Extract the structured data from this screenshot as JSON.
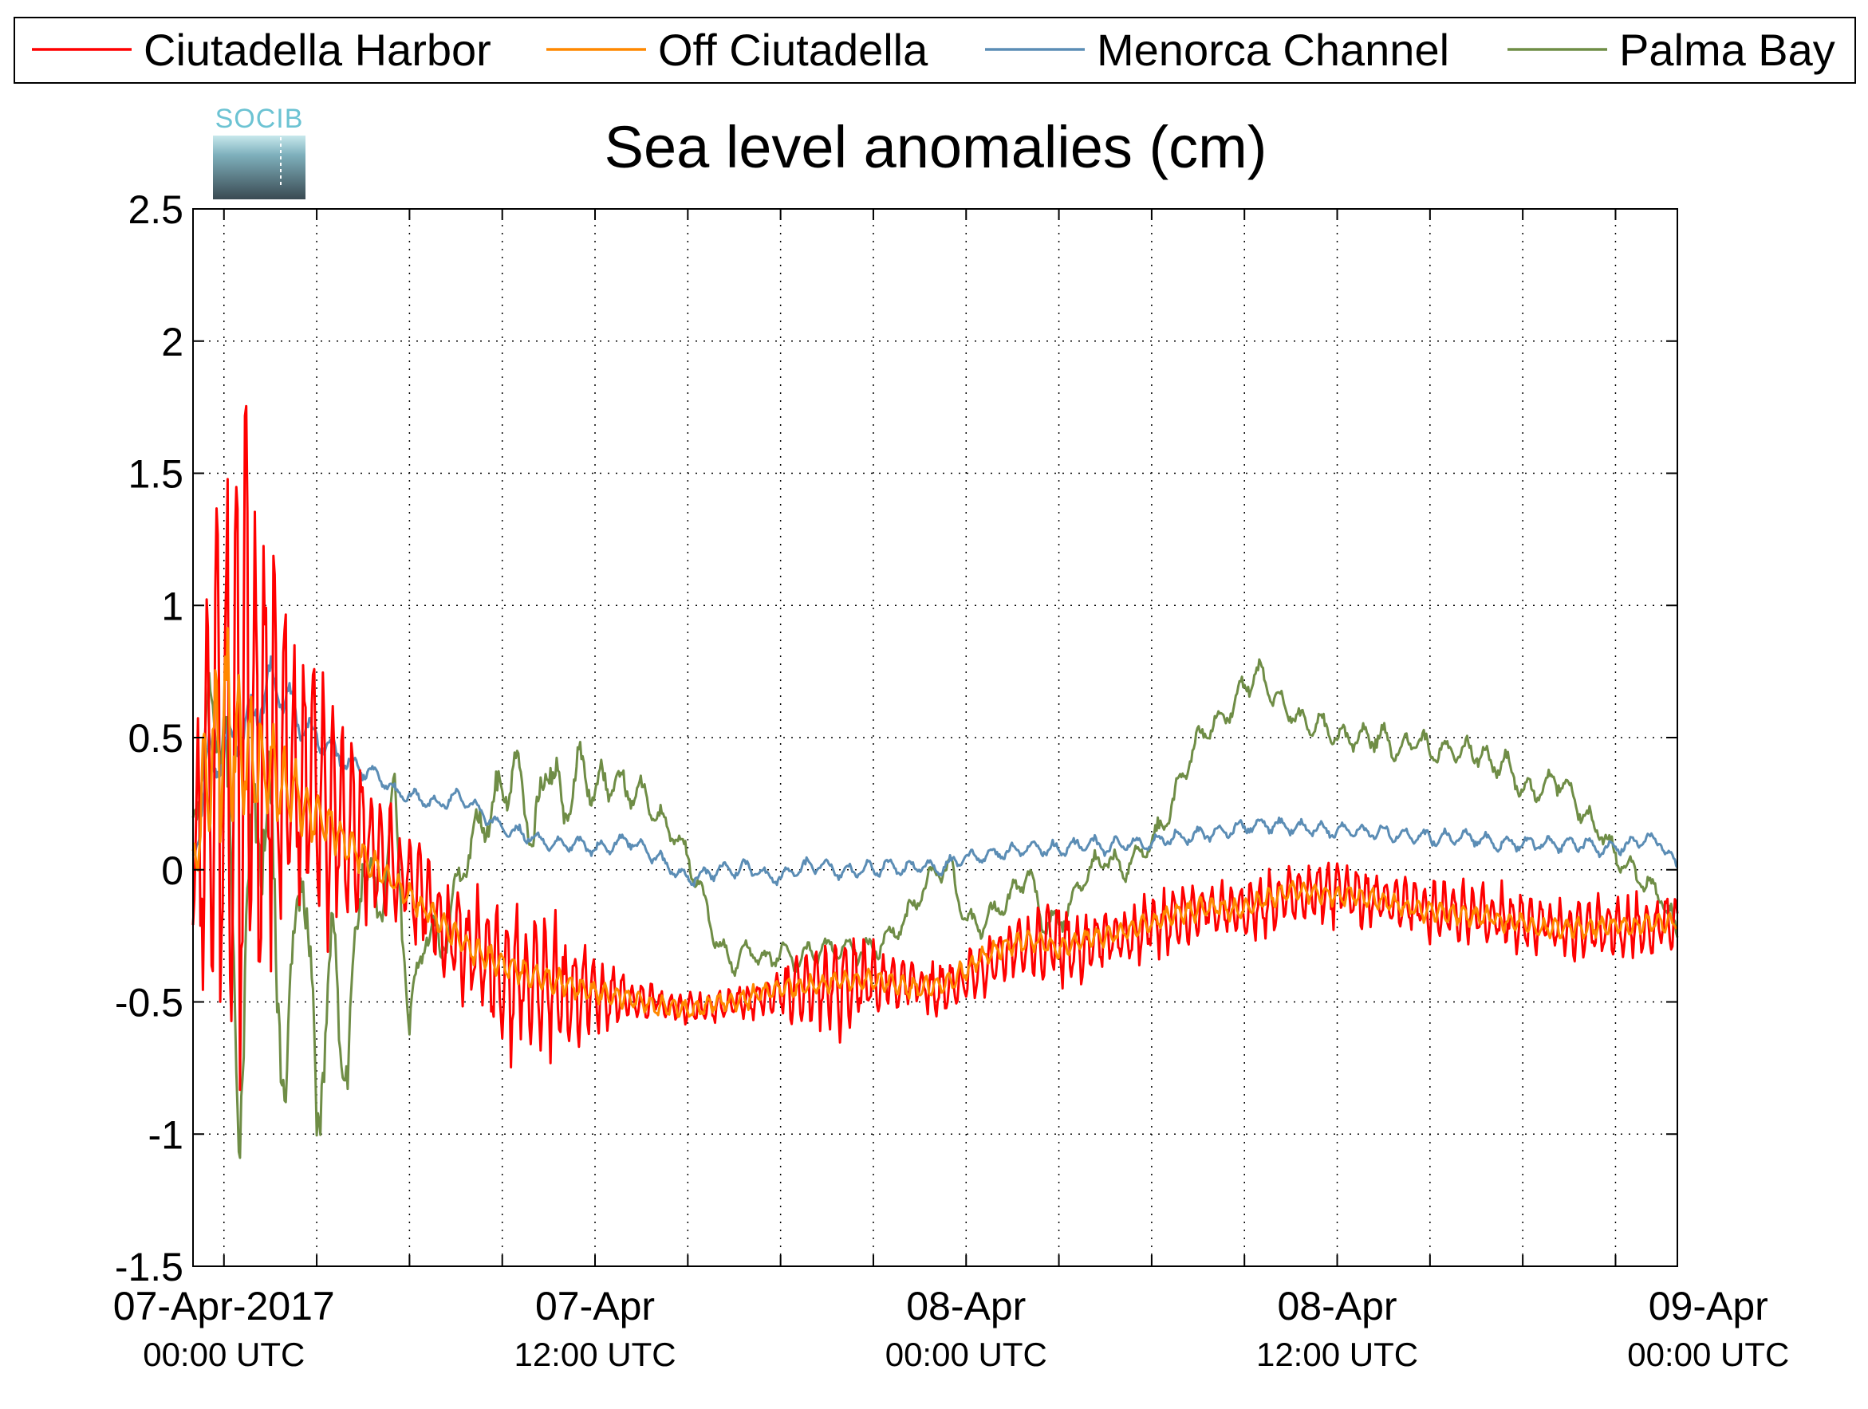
{
  "chart_data": {
    "type": "line",
    "title": "Sea level anomalies (cm)",
    "logo": "SOCIB",
    "xlabel": "",
    "ylabel": "",
    "ylim": [
      -1.5,
      2.5
    ],
    "yticks": [
      "-1.5",
      "-1",
      "-0.5",
      "0",
      "0.5",
      "1",
      "1.5",
      "2",
      "2.5"
    ],
    "xlim_hours": [
      -1,
      47
    ],
    "xticks": [
      {
        "h": 0,
        "line1": "07-Apr-2017",
        "line2": "00:00 UTC"
      },
      {
        "h": 12,
        "line1": "07-Apr",
        "line2": "12:00 UTC"
      },
      {
        "h": 24,
        "line1": "08-Apr",
        "line2": "00:00 UTC"
      },
      {
        "h": 36,
        "line1": "08-Apr",
        "line2": "12:00 UTC"
      },
      {
        "h": 48,
        "line1": "09-Apr",
        "line2": "00:00 UTC"
      }
    ],
    "grid": true,
    "legend_position": "top",
    "series": [
      {
        "name": "Ciutadella Harbor",
        "color": "#ff0000",
        "x": [
          -1,
          -0.5,
          0,
          0.5,
          1,
          1.5,
          2,
          2.5,
          3,
          3.5,
          4,
          4.5,
          5,
          5.5,
          6,
          6.5,
          7,
          7.5,
          8,
          8.5,
          9,
          9.5,
          10,
          10.5,
          11,
          11.5,
          12,
          12.5,
          13,
          13.5,
          14,
          14.5,
          15,
          15.5,
          16,
          16.5,
          17,
          17.5,
          18,
          18.5,
          19,
          19.5,
          20,
          20.5,
          21,
          21.5,
          22,
          22.5,
          23,
          23.5,
          24,
          24.5,
          25,
          25.5,
          26,
          26.5,
          27,
          27.5,
          28,
          28.5,
          29,
          29.5,
          30,
          30.5,
          31,
          31.5,
          32,
          32.5,
          33,
          33.5,
          34,
          34.5,
          35,
          35.5,
          36,
          36.5,
          37,
          37.5,
          38,
          38.5,
          39,
          39.5,
          40,
          40.5,
          41,
          41.5,
          42,
          42.5,
          43,
          43.5,
          44,
          44.5,
          45,
          45.5,
          46,
          46.5,
          47
        ],
        "values": [
          0.0,
          0.3,
          0.5,
          0.6,
          0.5,
          0.5,
          0.4,
          0.3,
          0.3,
          0.2,
          0.15,
          0.1,
          0.05,
          0.0,
          -0.05,
          -0.1,
          -0.2,
          -0.25,
          -0.3,
          -0.35,
          -0.4,
          -0.4,
          -0.42,
          -0.45,
          -0.45,
          -0.46,
          -0.47,
          -0.48,
          -0.48,
          -0.5,
          -0.5,
          -0.52,
          -0.52,
          -0.53,
          -0.52,
          -0.5,
          -0.5,
          -0.48,
          -0.46,
          -0.45,
          -0.44,
          -0.44,
          -0.43,
          -0.42,
          -0.42,
          -0.42,
          -0.43,
          -0.44,
          -0.45,
          -0.44,
          -0.42,
          -0.38,
          -0.33,
          -0.3,
          -0.28,
          -0.27,
          -0.28,
          -0.3,
          -0.28,
          -0.26,
          -0.25,
          -0.24,
          -0.22,
          -0.2,
          -0.18,
          -0.16,
          -0.15,
          -0.14,
          -0.15,
          -0.15,
          -0.12,
          -0.1,
          -0.08,
          -0.08,
          -0.09,
          -0.1,
          -0.1,
          -0.11,
          -0.12,
          -0.13,
          -0.15,
          -0.15,
          -0.16,
          -0.17,
          -0.18,
          -0.18,
          -0.2,
          -0.2,
          -0.22,
          -0.22,
          -0.22,
          -0.22,
          -0.22,
          -0.21,
          -0.22,
          -0.2,
          -0.2
        ],
        "amplitude": [
          0.3,
          0.8,
          1.3,
          1.3,
          1.2,
          1.0,
          0.8,
          0.6,
          0.5,
          0.45,
          0.4,
          0.35,
          0.3,
          0.25,
          0.2,
          0.2,
          0.2,
          0.2,
          0.22,
          0.25,
          0.28,
          0.3,
          0.3,
          0.28,
          0.25,
          0.2,
          0.15,
          0.12,
          0.1,
          0.08,
          0.06,
          0.06,
          0.06,
          0.06,
          0.06,
          0.06,
          0.07,
          0.08,
          0.1,
          0.12,
          0.15,
          0.18,
          0.2,
          0.18,
          0.15,
          0.12,
          0.1,
          0.1,
          0.1,
          0.1,
          0.1,
          0.1,
          0.1,
          0.12,
          0.15,
          0.15,
          0.15,
          0.15,
          0.14,
          0.13,
          0.12,
          0.12,
          0.12,
          0.12,
          0.12,
          0.12,
          0.12,
          0.12,
          0.12,
          0.12,
          0.12,
          0.12,
          0.12,
          0.12,
          0.12,
          0.12,
          0.12,
          0.12,
          0.12,
          0.12,
          0.12,
          0.12,
          0.12,
          0.12,
          0.12,
          0.12,
          0.12,
          0.12,
          0.12,
          0.12,
          0.12,
          0.12,
          0.12,
          0.12,
          0.12,
          0.12,
          0.12
        ]
      },
      {
        "name": "Off Ciutadella",
        "color": "#ff8800",
        "x": [
          -1,
          -0.5,
          0,
          0.5,
          1,
          1.5,
          2,
          2.5,
          3,
          3.5,
          4,
          4.5,
          5,
          5.5,
          6,
          6.5,
          7,
          7.5,
          8,
          8.5,
          9,
          9.5,
          10,
          10.5,
          11,
          11.5,
          12,
          12.5,
          13,
          13.5,
          14,
          14.5,
          15,
          15.5,
          16,
          16.5,
          17,
          17.5,
          18,
          18.5,
          19,
          19.5,
          20,
          20.5,
          21,
          21.5,
          22,
          22.5,
          23,
          23.5,
          24,
          24.5,
          25,
          25.5,
          26,
          26.5,
          27,
          27.5,
          28,
          28.5,
          29,
          29.5,
          30,
          30.5,
          31,
          31.5,
          32,
          32.5,
          33,
          33.5,
          34,
          34.5,
          35,
          35.5,
          36,
          36.5,
          37,
          37.5,
          38,
          38.5,
          39,
          39.5,
          40,
          40.5,
          41,
          41.5,
          42,
          42.5,
          43,
          43.5,
          44,
          44.5,
          45,
          45.5,
          46,
          46.5,
          47
        ],
        "values": [
          0.0,
          0.4,
          0.55,
          0.45,
          0.4,
          0.35,
          0.3,
          0.25,
          0.2,
          0.15,
          0.1,
          0.05,
          0.0,
          -0.05,
          -0.1,
          -0.15,
          -0.2,
          -0.25,
          -0.3,
          -0.33,
          -0.36,
          -0.38,
          -0.4,
          -0.42,
          -0.43,
          -0.45,
          -0.46,
          -0.48,
          -0.48,
          -0.5,
          -0.52,
          -0.52,
          -0.53,
          -0.52,
          -0.5,
          -0.5,
          -0.48,
          -0.46,
          -0.45,
          -0.44,
          -0.44,
          -0.43,
          -0.42,
          -0.42,
          -0.42,
          -0.43,
          -0.44,
          -0.45,
          -0.44,
          -0.42,
          -0.38,
          -0.33,
          -0.3,
          -0.28,
          -0.27,
          -0.28,
          -0.3,
          -0.28,
          -0.26,
          -0.25,
          -0.24,
          -0.22,
          -0.2,
          -0.18,
          -0.16,
          -0.15,
          -0.14,
          -0.15,
          -0.15,
          -0.12,
          -0.1,
          -0.08,
          -0.08,
          -0.09,
          -0.1,
          -0.1,
          -0.11,
          -0.12,
          -0.13,
          -0.15,
          -0.15,
          -0.16,
          -0.17,
          -0.18,
          -0.18,
          -0.2,
          -0.2,
          -0.22,
          -0.22,
          -0.22,
          -0.22,
          -0.22,
          -0.21,
          -0.22,
          -0.2,
          -0.2,
          -0.2
        ],
        "amplitude": [
          0.1,
          0.35,
          0.4,
          0.3,
          0.25,
          0.2,
          0.15,
          0.12,
          0.1,
          0.08,
          0.07,
          0.06,
          0.05,
          0.05,
          0.05,
          0.05,
          0.05,
          0.05,
          0.05,
          0.05,
          0.05,
          0.05,
          0.05,
          0.05,
          0.05,
          0.04,
          0.04,
          0.04,
          0.04,
          0.04,
          0.04,
          0.04,
          0.04,
          0.04,
          0.04,
          0.04,
          0.04,
          0.04,
          0.04,
          0.04,
          0.04,
          0.04,
          0.04,
          0.04,
          0.04,
          0.04,
          0.04,
          0.04,
          0.04,
          0.04,
          0.04,
          0.04,
          0.04,
          0.04,
          0.04,
          0.04,
          0.04,
          0.04,
          0.04,
          0.04,
          0.04,
          0.04,
          0.04,
          0.04,
          0.04,
          0.04,
          0.04,
          0.04,
          0.04,
          0.04,
          0.04,
          0.04,
          0.04,
          0.04,
          0.04,
          0.04,
          0.04,
          0.04,
          0.04,
          0.04,
          0.04,
          0.04,
          0.04,
          0.04,
          0.04,
          0.04,
          0.04,
          0.04,
          0.04,
          0.04,
          0.04,
          0.04,
          0.04,
          0.04,
          0.04,
          0.04,
          0.04
        ]
      },
      {
        "name": "Menorca Channel",
        "color": "#5b8db5",
        "x": [
          -1,
          -0.5,
          0,
          0.5,
          1,
          1.5,
          2,
          2.5,
          3,
          3.5,
          4,
          4.5,
          5,
          5.5,
          6,
          6.5,
          7,
          7.5,
          8,
          8.5,
          9,
          9.5,
          10,
          10.5,
          11,
          11.5,
          12,
          12.5,
          13,
          13.5,
          14,
          14.5,
          15,
          15.5,
          16,
          16.5,
          17,
          17.5,
          18,
          18.5,
          19,
          19.5,
          20,
          20.5,
          21,
          21.5,
          22,
          22.5,
          23,
          23.5,
          24,
          24.5,
          25,
          25.5,
          26,
          26.5,
          27,
          27.5,
          28,
          28.5,
          29,
          29.5,
          30,
          30.5,
          31,
          31.5,
          32,
          32.5,
          33,
          33.5,
          34,
          34.5,
          35,
          35.5,
          36,
          36.5,
          37,
          37.5,
          38,
          38.5,
          39,
          39.5,
          40,
          40.5,
          41,
          41.5,
          42,
          42.5,
          43,
          43.5,
          44,
          44.5,
          45,
          45.5,
          46,
          46.5,
          47
        ],
        "values": [
          0.05,
          0.4,
          0.45,
          0.5,
          0.6,
          0.7,
          0.65,
          0.55,
          0.5,
          0.45,
          0.4,
          0.38,
          0.35,
          0.3,
          0.28,
          0.26,
          0.25,
          0.28,
          0.25,
          0.2,
          0.16,
          0.14,
          0.12,
          0.1,
          0.1,
          0.1,
          0.08,
          0.09,
          0.12,
          0.08,
          0.05,
          0.0,
          -0.03,
          -0.02,
          0.0,
          0.0,
          0.01,
          -0.02,
          -0.03,
          0.0,
          0.02,
          0.01,
          -0.01,
          0.0,
          0.0,
          0.02,
          0.0,
          0.02,
          0.0,
          0.02,
          0.05,
          0.05,
          0.06,
          0.07,
          0.08,
          0.08,
          0.08,
          0.09,
          0.1,
          0.08,
          0.1,
          0.1,
          0.1,
          0.12,
          0.12,
          0.13,
          0.14,
          0.15,
          0.16,
          0.17,
          0.17,
          0.16,
          0.16,
          0.15,
          0.15,
          0.15,
          0.14,
          0.14,
          0.13,
          0.13,
          0.12,
          0.12,
          0.12,
          0.12,
          0.1,
          0.1,
          0.1,
          0.1,
          0.1,
          0.1,
          0.1,
          0.08,
          0.08,
          0.1,
          0.12,
          0.1,
          0.0
        ],
        "amplitude": [
          0.05,
          0.12,
          0.12,
          0.1,
          0.1,
          0.1,
          0.08,
          0.06,
          0.05,
          0.05,
          0.04,
          0.04,
          0.03,
          0.03,
          0.03,
          0.03,
          0.03,
          0.03,
          0.03,
          0.03,
          0.03,
          0.03,
          0.03,
          0.03,
          0.03,
          0.03,
          0.03,
          0.03,
          0.03,
          0.03,
          0.03,
          0.03,
          0.03,
          0.03,
          0.03,
          0.03,
          0.03,
          0.03,
          0.03,
          0.03,
          0.03,
          0.03,
          0.03,
          0.03,
          0.03,
          0.03,
          0.03,
          0.03,
          0.03,
          0.03,
          0.03,
          0.03,
          0.03,
          0.03,
          0.03,
          0.03,
          0.03,
          0.03,
          0.03,
          0.03,
          0.03,
          0.03,
          0.03,
          0.03,
          0.03,
          0.03,
          0.03,
          0.03,
          0.03,
          0.03,
          0.03,
          0.03,
          0.03,
          0.03,
          0.03,
          0.03,
          0.03,
          0.03,
          0.03,
          0.03,
          0.03,
          0.03,
          0.03,
          0.03,
          0.03,
          0.03,
          0.03,
          0.03,
          0.03,
          0.03,
          0.03,
          0.03,
          0.03,
          0.03,
          0.03,
          0.03,
          0.03
        ]
      },
      {
        "name": "Palma Bay",
        "color": "#6f8d46",
        "x": [
          -1,
          -0.5,
          0,
          0.5,
          1,
          1.5,
          2,
          2.5,
          3,
          3.5,
          4,
          4.5,
          5,
          5.5,
          6,
          6.5,
          7,
          7.5,
          8,
          8.5,
          9,
          9.5,
          10,
          10.5,
          11,
          11.5,
          12,
          12.5,
          13,
          13.5,
          14,
          14.5,
          15,
          15.5,
          16,
          16.5,
          17,
          17.5,
          18,
          18.5,
          19,
          19.5,
          20,
          20.5,
          21,
          21.5,
          22,
          22.5,
          23,
          23.5,
          24,
          24.5,
          25,
          25.5,
          26,
          26.5,
          27,
          27.5,
          28,
          28.5,
          29,
          29.5,
          30,
          30.5,
          31,
          31.5,
          32,
          32.5,
          33,
          33.5,
          34,
          34.5,
          35,
          35.5,
          36,
          36.5,
          37,
          37.5,
          38,
          38.5,
          39,
          39.5,
          40,
          40.5,
          41,
          41.5,
          42,
          42.5,
          43,
          43.5,
          44,
          44.5,
          45,
          45.5,
          46,
          46.5,
          47
        ],
        "values": [
          0.2,
          0.5,
          0.6,
          -0.9,
          0.3,
          0.1,
          -0.9,
          0.2,
          -0.95,
          -0.3,
          -0.8,
          0.1,
          -0.2,
          0.3,
          -0.6,
          -0.2,
          -0.3,
          -0.1,
          0.1,
          0.2,
          0.3,
          0.4,
          0.1,
          0.45,
          0.2,
          0.4,
          0.3,
          0.35,
          0.3,
          0.3,
          0.2,
          0.15,
          0.05,
          -0.1,
          -0.3,
          -0.35,
          -0.3,
          -0.35,
          -0.3,
          -0.35,
          -0.3,
          -0.3,
          -0.3,
          -0.3,
          -0.3,
          -0.25,
          -0.2,
          -0.1,
          0.0,
          0.0,
          -0.2,
          -0.2,
          -0.15,
          -0.1,
          0.0,
          -0.2,
          -0.2,
          -0.1,
          0.0,
          0.05,
          0.0,
          0.05,
          0.1,
          0.2,
          0.35,
          0.5,
          0.55,
          0.6,
          0.7,
          0.75,
          0.65,
          0.6,
          0.55,
          0.55,
          0.5,
          0.5,
          0.5,
          0.5,
          0.45,
          0.5,
          0.45,
          0.45,
          0.45,
          0.45,
          0.4,
          0.4,
          0.3,
          0.3,
          0.35,
          0.3,
          0.2,
          0.15,
          0.05,
          0.0,
          -0.05,
          -0.1,
          -0.25
        ],
        "amplitude": [
          0.05,
          0.2,
          0.3,
          0.3,
          0.3,
          0.3,
          0.25,
          0.25,
          0.2,
          0.2,
          0.2,
          0.15,
          0.15,
          0.1,
          0.1,
          0.1,
          0.1,
          0.1,
          0.1,
          0.1,
          0.1,
          0.1,
          0.1,
          0.1,
          0.1,
          0.08,
          0.08,
          0.08,
          0.08,
          0.06,
          0.05,
          0.05,
          0.05,
          0.05,
          0.05,
          0.05,
          0.05,
          0.05,
          0.05,
          0.05,
          0.05,
          0.05,
          0.05,
          0.05,
          0.05,
          0.05,
          0.05,
          0.05,
          0.05,
          0.05,
          0.05,
          0.05,
          0.05,
          0.05,
          0.05,
          0.05,
          0.05,
          0.05,
          0.05,
          0.05,
          0.05,
          0.05,
          0.05,
          0.05,
          0.05,
          0.05,
          0.05,
          0.05,
          0.05,
          0.05,
          0.05,
          0.05,
          0.05,
          0.05,
          0.05,
          0.05,
          0.05,
          0.05,
          0.05,
          0.05,
          0.05,
          0.05,
          0.05,
          0.05,
          0.05,
          0.05,
          0.05,
          0.05,
          0.05,
          0.05,
          0.05,
          0.05,
          0.05,
          0.05,
          0.05,
          0.05,
          0.05
        ]
      }
    ]
  }
}
